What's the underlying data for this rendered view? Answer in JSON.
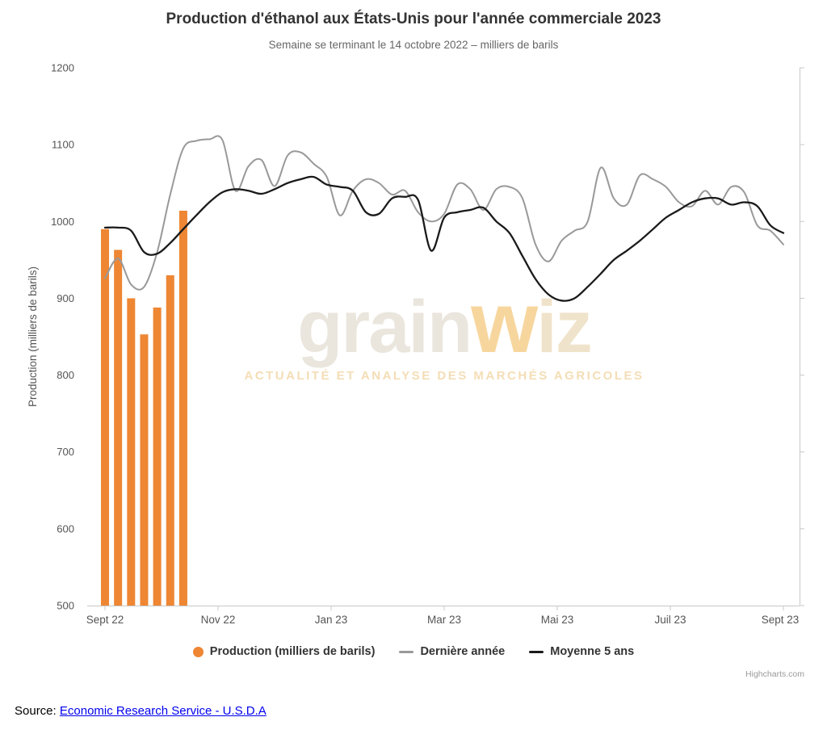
{
  "title": "Production d'éthanol aux États-Unis pour l'année commerciale 2023",
  "subtitle": "Semaine se terminant le 14 octobre 2022 – milliers de barils",
  "watermark": {
    "part1": "grain",
    "part2": "w",
    "part3": "iz",
    "tagline": "ACTUALITÉ ET ANALYSE DES MARCHÉS AGRICOLES"
  },
  "credits": "Highcharts.com",
  "source": {
    "label": "Source: ",
    "link_text": "Economic Research Service - U.S.D.A"
  },
  "colors": {
    "bar": "#ee8633",
    "last_year": "#999999",
    "avg5": "#1a1a1a",
    "axis": "#c8c8c8",
    "label": "#555555",
    "title": "#333333",
    "link": "#0000ee"
  },
  "chart_data": {
    "type": "mixed",
    "title": "Production d'éthanol aux États-Unis pour l'année commerciale 2023",
    "subtitle": "Semaine se terminant le 14 octobre 2022 – milliers de barils",
    "ylabel": "Production (milliers de barils)",
    "ylim": [
      500,
      1200
    ],
    "ytick_interval": 100,
    "ytick_labels": [
      "1200",
      "1100",
      "1000",
      "900",
      "800",
      "700",
      "600",
      "500"
    ],
    "x_tick_labels": [
      "Sept 22",
      "Nov 22",
      "Jan 23",
      "Mar 23",
      "Mai 23",
      "Juil 23",
      "Sept 23"
    ],
    "weeks": 53,
    "grid": false,
    "legend_position": "bottom",
    "series": [
      {
        "name": "Production (milliers de barils)",
        "type": "bar",
        "color": "#ee8633",
        "values": [
          990,
          963,
          900,
          853,
          888,
          930,
          1014
        ]
      },
      {
        "name": "Dernière année",
        "type": "line",
        "color": "#999999",
        "values": [
          926,
          952,
          918,
          915,
          960,
          1035,
          1095,
          1105,
          1107,
          1106,
          1040,
          1072,
          1080,
          1046,
          1086,
          1090,
          1075,
          1058,
          1008,
          1040,
          1055,
          1050,
          1035,
          1040,
          1012,
          1000,
          1010,
          1048,
          1042,
          1015,
          1042,
          1045,
          1030,
          970,
          948,
          975,
          988,
          1000,
          1070,
          1030,
          1022,
          1060,
          1055,
          1045,
          1025,
          1020,
          1040,
          1022,
          1045,
          1038,
          995,
          988,
          970
        ]
      },
      {
        "name": "Moyenne 5 ans",
        "type": "line",
        "color": "#1a1a1a",
        "values": [
          992,
          992,
          988,
          960,
          958,
          972,
          990,
          1008,
          1025,
          1038,
          1042,
          1040,
          1036,
          1042,
          1050,
          1055,
          1058,
          1048,
          1045,
          1040,
          1012,
          1010,
          1030,
          1032,
          1028,
          962,
          1005,
          1012,
          1015,
          1018,
          1000,
          985,
          955,
          925,
          905,
          897,
          900,
          915,
          932,
          950,
          962,
          975,
          990,
          1005,
          1015,
          1025,
          1030,
          1030,
          1022,
          1025,
          1020,
          995,
          985
        ]
      }
    ]
  }
}
